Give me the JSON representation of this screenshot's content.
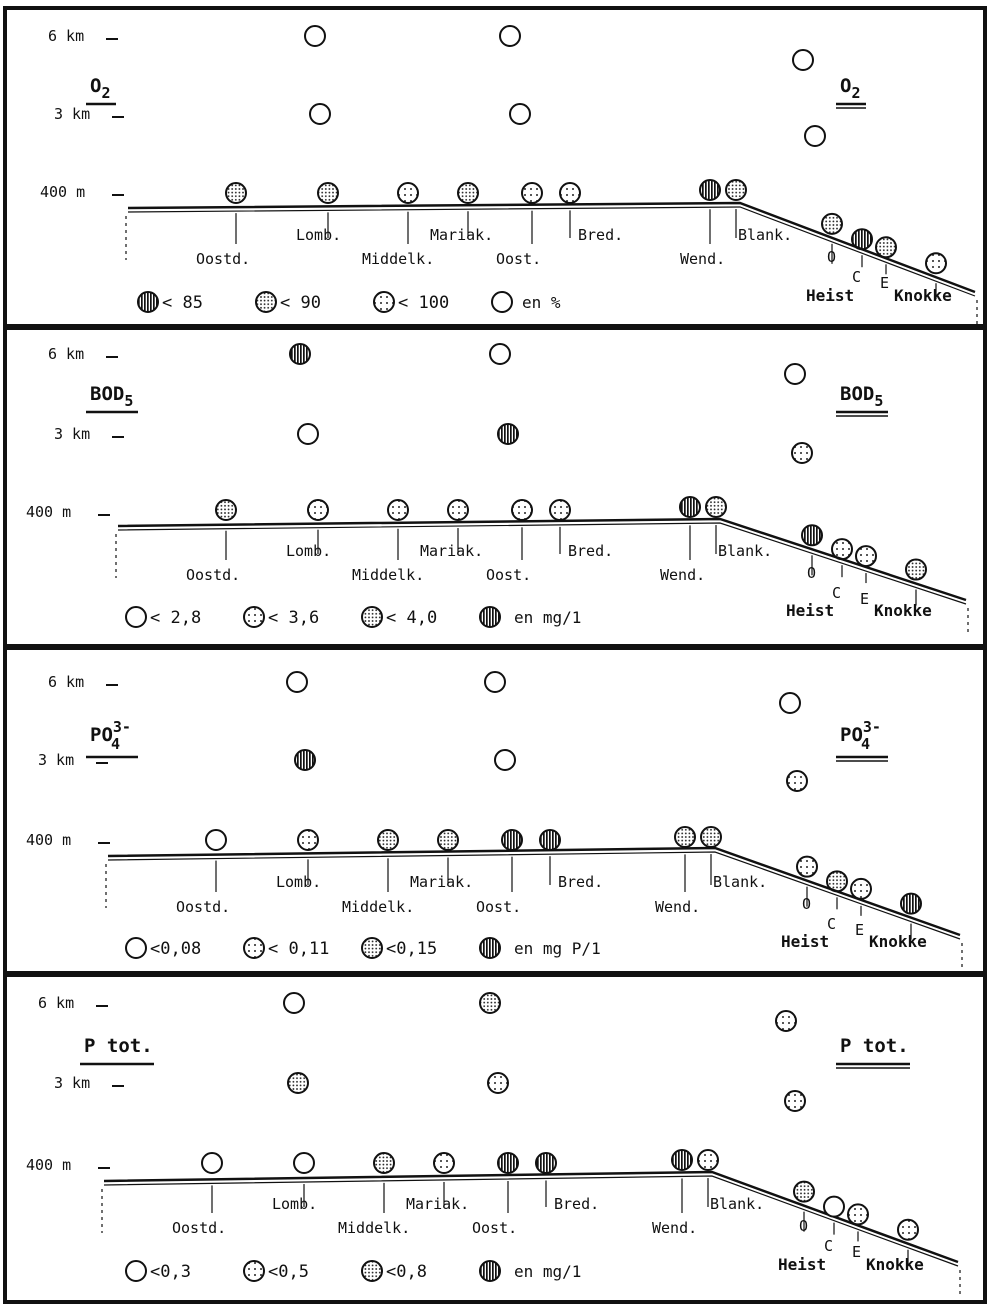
{
  "panels": [
    {
      "name": "o2",
      "title": {
        "base": "O",
        "sub": "2",
        "sup": ""
      },
      "dist_labels": [
        "6 km",
        "3 km",
        "400 m"
      ],
      "stations": {
        "Oostd": "Oostd.",
        "Lomb": "Lomb.",
        "Middelk": "Middelk.",
        "Mariak": "Mariak.",
        "Oost": "Oost.",
        "Bred": "Bred.",
        "Wend": "Wend.",
        "Blank": "Blank.",
        "O": "O",
        "C": "C",
        "E": "E",
        "Heist": "Heist",
        "Knokke": "Knokke"
      },
      "markers": {
        "offshore": {
          "f6a": "open",
          "f6b": "open",
          "f3a": "open",
          "f3b": "open",
          "e1": "open",
          "e2": "open"
        },
        "shore": {
          "Oostd": "dense",
          "Lomb": "dense",
          "Middelk": "dots",
          "Mariak": "dense",
          "Oost": "dots",
          "Bred": "dots",
          "Wend": "hatched",
          "Blank": "dense",
          "O": "dense",
          "C": "hatched",
          "E": "dense",
          "Knokke": "dots"
        }
      },
      "legend": {
        "items": [
          {
            "symbol": "hatched",
            "text": "< 85"
          },
          {
            "symbol": "dense",
            "text": "< 90"
          },
          {
            "symbol": "dots",
            "text": "< 100"
          },
          {
            "symbol": "open",
            "text": ""
          }
        ],
        "unit": "en %"
      }
    },
    {
      "name": "bod5",
      "title": {
        "base": "BOD",
        "sub": "5",
        "sup": ""
      },
      "dist_labels": [
        "6 km",
        "3 km",
        "400 m"
      ],
      "stations": {
        "Oostd": "Oostd.",
        "Lomb": "Lomb.",
        "Middelk": "Middelk.",
        "Mariak": "Mariak.",
        "Oost": "Oost.",
        "Bred": "Bred.",
        "Wend": "Wend.",
        "Blank": "Blank.",
        "O": "O",
        "C": "C",
        "E": "E",
        "Heist": "Heist",
        "Knokke": "Knokke"
      },
      "markers": {
        "offshore": {
          "f6a": "hatched",
          "f6b": "open",
          "f3a": "open",
          "f3b": "hatched",
          "e1": "open",
          "e2": "dots"
        },
        "shore": {
          "Oostd": "dense",
          "Lomb": "dots",
          "Middelk": "dots",
          "Mariak": "dots",
          "Oost": "dots",
          "Bred": "dots",
          "Wend": "hatched",
          "Blank": "dense",
          "O": "hatched",
          "C": "dots",
          "E": "dots",
          "Knokke": "dense"
        }
      },
      "legend": {
        "items": [
          {
            "symbol": "open",
            "text": "< 2,8"
          },
          {
            "symbol": "dots",
            "text": "< 3,6"
          },
          {
            "symbol": "dense",
            "text": "< 4,0"
          },
          {
            "symbol": "hatched",
            "text": ""
          }
        ],
        "unit": "en mg/1"
      }
    },
    {
      "name": "po4",
      "title": {
        "base": "PO",
        "sub": "4",
        "sup": "3-"
      },
      "dist_labels": [
        "6 km",
        "3 km",
        "400 m"
      ],
      "stations": {
        "Oostd": "Oostd.",
        "Lomb": "Lomb.",
        "Middelk": "Middelk.",
        "Mariak": "Mariak.",
        "Oost": "Oost.",
        "Bred": "Bred.",
        "Wend": "Wend.",
        "Blank": "Blank.",
        "O": "O",
        "C": "C",
        "E": "E",
        "Heist": "Heist",
        "Knokke": "Knokke"
      },
      "markers": {
        "offshore": {
          "f6a": "open",
          "f6b": "open",
          "f3a": "hatched",
          "f3b": "open",
          "e1": "open",
          "e2": "dots"
        },
        "shore": {
          "Oostd": "open",
          "Lomb": "dots",
          "Middelk": "dense",
          "Mariak": "dense",
          "Oost": "hatched",
          "Bred": "hatched",
          "Wend": "dense",
          "Blank": "dense",
          "O": "dots",
          "C": "dense",
          "E": "dots",
          "Knokke": "hatched"
        }
      },
      "legend": {
        "items": [
          {
            "symbol": "open",
            "text": "<0,08"
          },
          {
            "symbol": "dots",
            "text": "< 0,11"
          },
          {
            "symbol": "dense",
            "text": "<0,15"
          },
          {
            "symbol": "hatched",
            "text": ""
          }
        ],
        "unit": "en mg P/1"
      }
    },
    {
      "name": "ptot",
      "title": {
        "base": "P tot.",
        "sub": "",
        "sup": ""
      },
      "dist_labels": [
        "6 km",
        "3 km",
        "400 m"
      ],
      "stations": {
        "Oostd": "Oostd.",
        "Lomb": "Lomb.",
        "Middelk": "Middelk.",
        "Mariak": "Mariak.",
        "Oost": "Oost.",
        "Bred": "Bred.",
        "Wend": "Wend.",
        "Blank": "Blank.",
        "O": "O",
        "C": "C",
        "E": "E",
        "Heist": "Heist",
        "Knokke": "Knokke"
      },
      "markers": {
        "offshore": {
          "f6a": "open",
          "f6b": "dense",
          "f3a": "dense",
          "f3b": "dots",
          "e1": "dots",
          "e2": "dots"
        },
        "shore": {
          "Oostd": "open",
          "Lomb": "open",
          "Middelk": "dense",
          "Mariak": "dots",
          "Oost": "hatched",
          "Bred": "hatched",
          "Wend": "hatched",
          "Blank": "dots",
          "O": "dense",
          "C": "open",
          "E": "dots",
          "Knokke": "dots"
        }
      },
      "legend": {
        "items": [
          {
            "symbol": "open",
            "text": "<0,3"
          },
          {
            "symbol": "dots",
            "text": "<0,5"
          },
          {
            "symbol": "dense",
            "text": "<0,8"
          },
          {
            "symbol": "hatched",
            "text": ""
          }
        ],
        "unit": "en mg/1"
      }
    }
  ]
}
